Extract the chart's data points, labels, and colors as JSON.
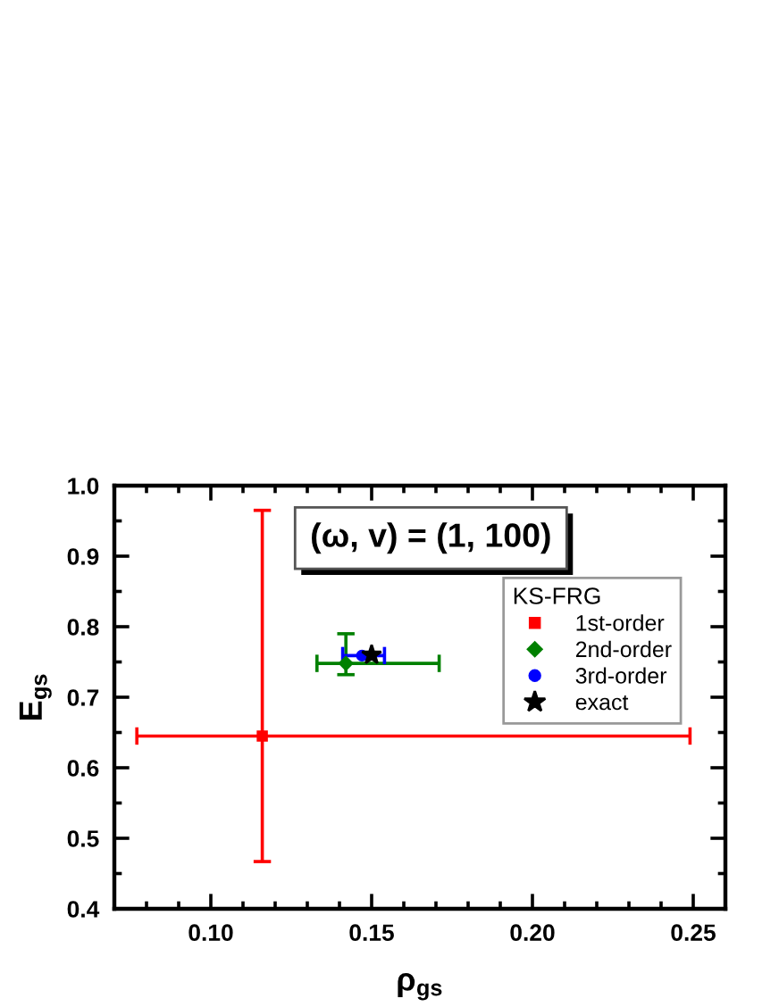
{
  "chart_data": {
    "type": "scatter",
    "xlabel": "ρ$_{gs}$",
    "ylabel": "E$_{gs}$",
    "legend_title": "KS-FRG",
    "legend": "right",
    "annotations": [
      "(ω, v) = (1, 100)"
    ],
    "xlim": [
      0.07,
      0.26
    ],
    "xticks": [
      {
        "value": 0.1,
        "label": "0.10"
      },
      {
        "value": 0.15,
        "label": "0.15"
      },
      {
        "value": 0.2,
        "label": "0.20"
      },
      {
        "value": 0.25,
        "label": "0.25"
      }
    ],
    "ylim": [
      0.4,
      1.0
    ],
    "yticks": [
      0.4,
      0.5,
      0.6,
      0.7,
      0.8,
      0.9,
      {
        "value": 1,
        "label": "1.0"
      }
    ],
    "series": [
      {
        "name": "1st-order",
        "color": "#ff0000",
        "marker": "square",
        "x": [
          0.116
        ],
        "values": [
          0.645
        ],
        "errors": [
          [
            0.467,
            0.965
          ]
        ],
        "xerrors": [
          [
            0.077,
            0.249
          ]
        ]
      },
      {
        "name": "2nd-order",
        "color": "#008000",
        "marker": "diamond",
        "x": [
          0.142
        ],
        "values": [
          0.748
        ],
        "errors": [
          [
            0.732,
            0.79
          ]
        ],
        "xerrors": [
          [
            0.133,
            0.171
          ]
        ]
      },
      {
        "name": "3rd-order",
        "color": "#0000ff",
        "marker": "circle",
        "x": [
          0.147
        ],
        "values": [
          0.759
        ],
        "xerrors": [
          [
            0.141,
            0.154
          ]
        ]
      },
      {
        "name": "exact",
        "color": "#000000",
        "marker": "star",
        "x": [
          0.15
        ],
        "values": [
          0.76
        ]
      }
    ]
  }
}
